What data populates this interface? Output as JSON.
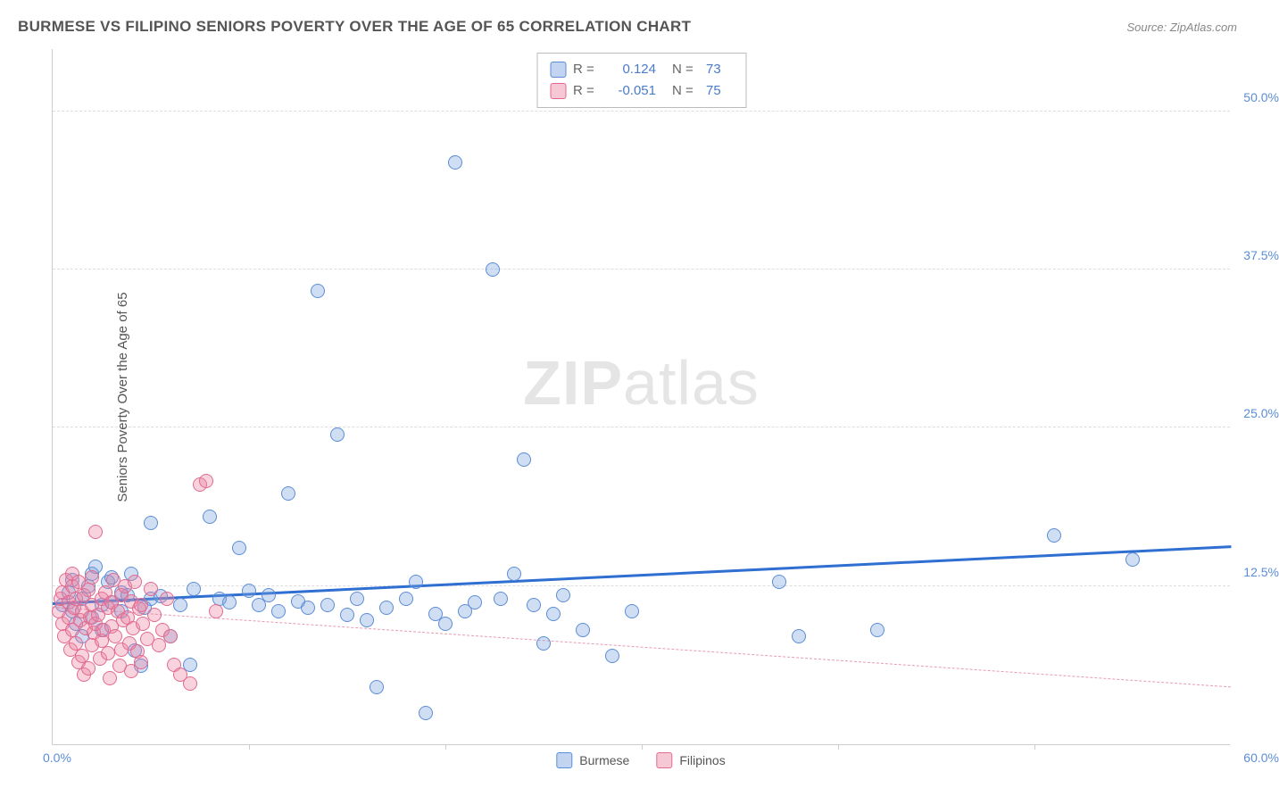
{
  "header": {
    "title": "BURMESE VS FILIPINO SENIORS POVERTY OVER THE AGE OF 65 CORRELATION CHART",
    "source": "Source: ZipAtlas.com"
  },
  "chart": {
    "type": "scatter",
    "ylabel": "Seniors Poverty Over the Age of 65",
    "watermark_bold": "ZIP",
    "watermark_rest": "atlas",
    "xlim": [
      0,
      60
    ],
    "ylim": [
      0,
      55
    ],
    "x_origin_label": "0.0%",
    "x_max_label": "60.0%",
    "y_ticks": [
      {
        "v": 12.5,
        "label": "12.5%"
      },
      {
        "v": 25.0,
        "label": "25.0%"
      },
      {
        "v": 37.5,
        "label": "37.5%"
      },
      {
        "v": 50.0,
        "label": "50.0%"
      }
    ],
    "x_ticks": [
      10,
      20,
      30,
      40,
      50
    ],
    "grid_color": "#dddddd",
    "axis_color": "#cccccc",
    "background_color": "#ffffff",
    "point_radius": 8,
    "series": [
      {
        "name": "Burmese",
        "fill": "rgba(120,160,220,0.35)",
        "stroke": "#5b8dd6",
        "swatch_fill": "rgba(120,160,220,0.45)",
        "swatch_stroke": "#5b8dd6",
        "trend": {
          "y_at_x0": 11.0,
          "y_at_xmax": 15.5,
          "color": "#2e6fd1",
          "width": 3,
          "dash": "solid"
        },
        "R": "0.124",
        "N": "73",
        "points": [
          [
            0.5,
            11
          ],
          [
            0.8,
            12
          ],
          [
            1,
            10.5
          ],
          [
            1,
            13
          ],
          [
            1.2,
            9.5
          ],
          [
            1.5,
            11.5
          ],
          [
            1.5,
            8.5
          ],
          [
            1.8,
            12.5
          ],
          [
            2,
            13.5
          ],
          [
            2,
            10
          ],
          [
            2.2,
            14
          ],
          [
            2.5,
            11
          ],
          [
            2.5,
            9
          ],
          [
            2.8,
            12.8
          ],
          [
            3,
            11.2
          ],
          [
            3,
            13.2
          ],
          [
            3.5,
            10.5
          ],
          [
            3.5,
            12
          ],
          [
            3.8,
            11.8
          ],
          [
            4,
            13.5
          ],
          [
            4.2,
            7.4
          ],
          [
            4.5,
            6.2
          ],
          [
            4.7,
            10.8
          ],
          [
            5,
            11.5
          ],
          [
            5,
            17.5
          ],
          [
            5.5,
            11.7
          ],
          [
            6,
            8.5
          ],
          [
            6.5,
            11
          ],
          [
            7,
            6.3
          ],
          [
            7.2,
            12.3
          ],
          [
            8,
            18
          ],
          [
            8.5,
            11.5
          ],
          [
            9,
            11.2
          ],
          [
            9.5,
            15.5
          ],
          [
            10,
            12.1
          ],
          [
            10.5,
            11
          ],
          [
            11,
            11.8
          ],
          [
            11.5,
            10.5
          ],
          [
            12,
            19.8
          ],
          [
            12.5,
            11.3
          ],
          [
            13,
            10.8
          ],
          [
            13.5,
            35.8
          ],
          [
            14,
            11
          ],
          [
            14.5,
            24.5
          ],
          [
            15,
            10.2
          ],
          [
            15.5,
            11.5
          ],
          [
            16,
            9.8
          ],
          [
            16.5,
            4.5
          ],
          [
            17,
            10.8
          ],
          [
            18,
            11.5
          ],
          [
            18.5,
            12.8
          ],
          [
            19,
            2.5
          ],
          [
            19.5,
            10.3
          ],
          [
            20,
            9.5
          ],
          [
            20.5,
            46
          ],
          [
            21,
            10.5
          ],
          [
            21.5,
            11.2
          ],
          [
            22.4,
            37.5
          ],
          [
            22.8,
            11.5
          ],
          [
            23.5,
            13.5
          ],
          [
            24,
            22.5
          ],
          [
            24.5,
            11
          ],
          [
            25,
            8
          ],
          [
            25.5,
            10.3
          ],
          [
            26,
            11.8
          ],
          [
            27,
            9
          ],
          [
            28.5,
            7
          ],
          [
            29.5,
            10.5
          ],
          [
            37,
            12.8
          ],
          [
            38,
            8.5
          ],
          [
            42,
            9
          ],
          [
            51,
            16.5
          ],
          [
            55,
            14.6
          ]
        ]
      },
      {
        "name": "Filipinos",
        "fill": "rgba(235,130,160,0.35)",
        "stroke": "#e26a8f",
        "swatch_fill": "rgba(235,130,160,0.45)",
        "swatch_stroke": "#e26a8f",
        "trend": {
          "y_at_x0": 10.8,
          "y_at_xmax": 4.5,
          "color": "#e89ab2",
          "width": 1,
          "dash": "dashed"
        },
        "R": "-0.051",
        "N": "75",
        "points": [
          [
            0.3,
            10.5
          ],
          [
            0.4,
            11.5
          ],
          [
            0.5,
            9.5
          ],
          [
            0.5,
            12
          ],
          [
            0.6,
            8.5
          ],
          [
            0.7,
            13
          ],
          [
            0.8,
            10
          ],
          [
            0.8,
            11.2
          ],
          [
            0.9,
            7.5
          ],
          [
            1,
            12.5
          ],
          [
            1,
            9
          ],
          [
            1,
            13.5
          ],
          [
            1.1,
            10.8
          ],
          [
            1.2,
            8
          ],
          [
            1.2,
            11.5
          ],
          [
            1.3,
            6.5
          ],
          [
            1.3,
            12.8
          ],
          [
            1.4,
            9.8
          ],
          [
            1.5,
            10.5
          ],
          [
            1.5,
            7
          ],
          [
            1.6,
            11.8
          ],
          [
            1.6,
            5.5
          ],
          [
            1.7,
            9.2
          ],
          [
            1.8,
            12.2
          ],
          [
            1.8,
            6
          ],
          [
            1.9,
            10
          ],
          [
            2,
            11
          ],
          [
            2,
            7.8
          ],
          [
            2,
            13.2
          ],
          [
            2.1,
            8.8
          ],
          [
            2.2,
            9.5
          ],
          [
            2.2,
            16.8
          ],
          [
            2.3,
            10.2
          ],
          [
            2.4,
            6.8
          ],
          [
            2.5,
            11.5
          ],
          [
            2.5,
            8.2
          ],
          [
            2.6,
            9
          ],
          [
            2.7,
            12
          ],
          [
            2.8,
            10.8
          ],
          [
            2.8,
            7.2
          ],
          [
            2.9,
            5.2
          ],
          [
            3,
            11.2
          ],
          [
            3,
            9.3
          ],
          [
            3.1,
            13
          ],
          [
            3.2,
            8.5
          ],
          [
            3.3,
            10.5
          ],
          [
            3.4,
            6.2
          ],
          [
            3.5,
            11.8
          ],
          [
            3.5,
            7.5
          ],
          [
            3.6,
            9.8
          ],
          [
            3.7,
            12.5
          ],
          [
            3.8,
            10
          ],
          [
            3.9,
            8
          ],
          [
            4,
            11.3
          ],
          [
            4,
            5.8
          ],
          [
            4.1,
            9.2
          ],
          [
            4.2,
            12.8
          ],
          [
            4.3,
            7.3
          ],
          [
            4.4,
            10.7
          ],
          [
            4.5,
            6.5
          ],
          [
            4.5,
            11
          ],
          [
            4.6,
            9.5
          ],
          [
            4.8,
            8.3
          ],
          [
            5,
            12.3
          ],
          [
            5.2,
            10.2
          ],
          [
            5.4,
            7.8
          ],
          [
            5.6,
            9
          ],
          [
            5.8,
            11.5
          ],
          [
            6,
            8.5
          ],
          [
            6.2,
            6.3
          ],
          [
            6.5,
            5.5
          ],
          [
            7,
            4.8
          ],
          [
            7.5,
            20.5
          ],
          [
            7.8,
            20.8
          ],
          [
            8.3,
            10.5
          ]
        ]
      }
    ]
  },
  "legend_bottom": [
    {
      "label": "Burmese"
    },
    {
      "label": "Filipinos"
    }
  ]
}
